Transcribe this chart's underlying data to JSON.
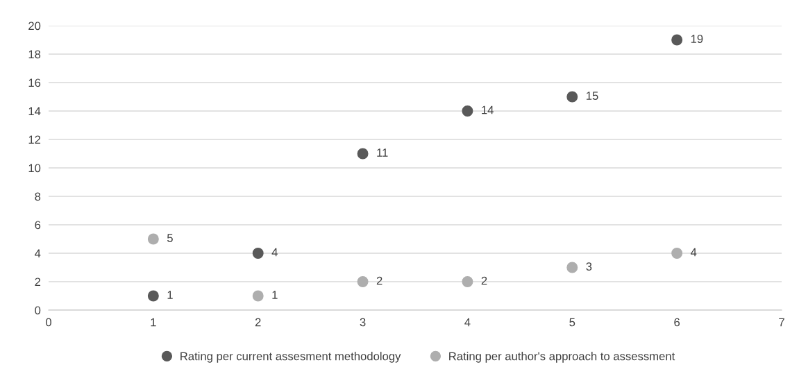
{
  "chart_data": {
    "type": "scatter",
    "x": [
      1,
      2,
      3,
      4,
      5,
      6
    ],
    "series": [
      {
        "name": "Rating per current assesment methodology",
        "color": "#595959",
        "values": [
          1,
          4,
          11,
          14,
          15,
          19
        ]
      },
      {
        "name": "Rating per author's approach to assessment",
        "color": "#aeaeae",
        "values": [
          5,
          1,
          2,
          2,
          3,
          4
        ]
      }
    ],
    "xlim": [
      0,
      7
    ],
    "xticks": [
      0,
      1,
      2,
      3,
      4,
      5,
      6,
      7
    ],
    "ylim": [
      0,
      20
    ],
    "yticks": [
      0,
      2,
      4,
      6,
      8,
      10,
      12,
      14,
      16,
      18,
      20
    ],
    "grid": "y",
    "legend": "bottom",
    "data_labels": true,
    "marker": "circle"
  }
}
